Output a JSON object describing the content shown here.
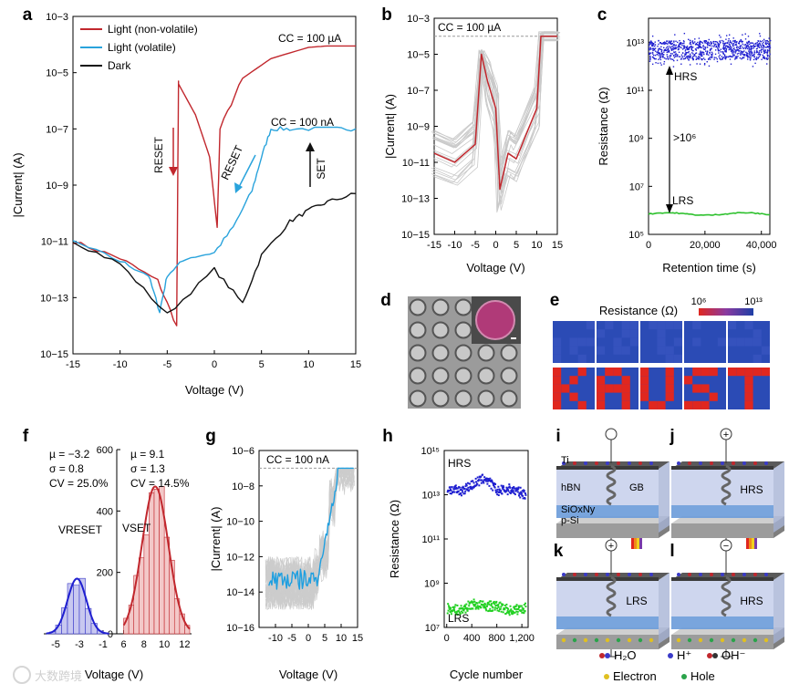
{
  "panels": {
    "a": {
      "letter": "a",
      "xlabel": "Voltage (V)",
      "ylabel": "|Current| (A)",
      "xticks": [
        "-15",
        "-10",
        "-5",
        "0",
        "5",
        "10",
        "15"
      ],
      "yticks": [
        "10−15",
        "10−13",
        "10−11",
        "10−9",
        "10−7",
        "10−5",
        "10−3"
      ],
      "legend": [
        "Light (non-volatile)",
        "Light (volatile)",
        "Dark"
      ],
      "cc_high": "CC = 100 µA",
      "cc_low": "CC = 100 nA",
      "reset1": "RESET",
      "reset2": "RESET",
      "set": "SET"
    },
    "b": {
      "letter": "b",
      "xlabel": "Voltage (V)",
      "ylabel": "|Current| (A)",
      "xticks": [
        "-15",
        "-10",
        "-5",
        "0",
        "5",
        "10",
        "15"
      ],
      "yticks": [
        "10−15",
        "10−13",
        "10−11",
        "10−9",
        "10−7",
        "10−5",
        "10−3"
      ],
      "cc": "CC = 100 µA"
    },
    "c": {
      "letter": "c",
      "xlabel": "Retention time (s)",
      "ylabel": "Resistance (Ω)",
      "xticks": [
        "0",
        "20,000",
        "40,000"
      ],
      "yticks": [
        "10⁵",
        "10⁷",
        "10⁹",
        "10¹¹",
        "10¹³"
      ],
      "hrs": "HRS",
      "lrs": "LRS",
      "ratio": ">10⁶"
    },
    "d": {
      "letter": "d"
    },
    "e": {
      "letter": "e",
      "title": "Resistance (Ω)",
      "scale_min": "10⁶",
      "scale_max": "10¹³"
    },
    "f": {
      "letter": "f",
      "xlabel": "Voltage (V)",
      "xticks": [
        "-5",
        "-3",
        "-1",
        "6",
        "8",
        "10",
        "12"
      ],
      "yticks": [
        "0",
        "200",
        "400",
        "600"
      ],
      "reset_stats": [
        "µ = −3.2",
        "σ = 0.8",
        "CV = 25.0%"
      ],
      "set_stats": [
        "µ = 9.1",
        "σ = 1.3",
        "CV = 14.5%"
      ],
      "vreset": "VRESET",
      "vset": "VSET"
    },
    "g": {
      "letter": "g",
      "xlabel": "Voltage (V)",
      "ylabel": "|Current| (A)",
      "xticks": [
        "-10",
        "-5",
        "0",
        "5",
        "10",
        "15"
      ],
      "yticks": [
        "10−16",
        "10−14",
        "10−12",
        "10−10",
        "10−8",
        "10−6"
      ],
      "cc": "CC = 100 nA"
    },
    "h": {
      "letter": "h",
      "xlabel": "Cycle number",
      "ylabel": "Resistance (Ω)",
      "xticks": [
        "0",
        "400",
        "800",
        "1,200"
      ],
      "yticks": [
        "10⁷",
        "10⁹",
        "10¹¹",
        "10¹³",
        "10¹⁵"
      ],
      "hrs": "HRS",
      "lrs": "LRS"
    },
    "i": {
      "letter": "i",
      "ti": "Ti",
      "hbn": "hBN",
      "gb": "GB",
      "sio": "SiOxNy",
      "psi": "p-Si",
      "state": "HRS"
    },
    "j": {
      "letter": "j",
      "state": "HRS"
    },
    "k": {
      "letter": "k",
      "state": "LRS"
    },
    "l": {
      "letter": "l",
      "state": "HRS"
    },
    "legend2": [
      "H₂O",
      "H⁺",
      "OH⁻",
      "Electron",
      "Hole"
    ],
    "watermark": "大数跨境"
  },
  "chart_data": [
    {
      "type": "line",
      "panel": "a",
      "xlim": [
        -15,
        15
      ],
      "ylim": [
        -15,
        -3
      ],
      "yscale": "log10",
      "series": [
        {
          "name": "Light (non-volatile)",
          "x": [
            -15,
            -10,
            -6,
            -4,
            -3.8,
            -3.8,
            -2,
            -0.5,
            0.3,
            0.6,
            3,
            6,
            10,
            12,
            15
          ],
          "y": [
            -11.0,
            -11.6,
            -12.4,
            -14.0,
            -5.3,
            -5.4,
            -6.5,
            -8.0,
            -10.5,
            -7,
            -5.2,
            -4.5,
            -4.1,
            -4.05,
            -4.05
          ]
        },
        {
          "name": "Light (volatile)",
          "x": [
            -15,
            -10,
            -7,
            -5.8,
            -5,
            -3,
            0,
            2,
            4,
            5,
            6,
            8,
            12,
            15
          ],
          "y": [
            -11.0,
            -11.7,
            -12.2,
            -13.5,
            -12.2,
            -11.6,
            -11.4,
            -10.5,
            -9.2,
            -8.0,
            -7.0,
            -7.0,
            -7.0,
            -7.0
          ]
        },
        {
          "name": "Dark",
          "x": [
            -15,
            -10,
            -5,
            0,
            3,
            5,
            8,
            10,
            12,
            15
          ],
          "y": [
            -11.0,
            -11.8,
            -13.6,
            -12.0,
            -13.2,
            -11.5,
            -10.3,
            -9.9,
            -9.6,
            -9.3
          ]
        }
      ]
    },
    {
      "type": "line",
      "panel": "b",
      "xlim": [
        -15,
        15
      ],
      "ylim": [
        -15,
        -3
      ],
      "yscale": "log10",
      "series": [
        {
          "name": "",
          "x": [
            -15,
            -10,
            -5,
            -3.5,
            -2,
            0,
            1,
            3,
            5,
            10,
            11,
            15
          ],
          "y": [
            -10.5,
            -11.0,
            -10.0,
            -5.0,
            -6.5,
            -8.0,
            -12.5,
            -10.5,
            -10.8,
            -8.0,
            -4.0,
            -4.0
          ]
        }
      ]
    },
    {
      "type": "scatter",
      "panel": "c",
      "xlim": [
        0,
        43000
      ],
      "ylim": [
        5,
        14
      ],
      "yscale": "log10",
      "series": [
        {
          "name": "HRS",
          "x": [
            0,
            10000,
            20000,
            30000,
            43000
          ],
          "y": [
            12.8,
            12.8,
            12.7,
            12.8,
            12.8
          ]
        },
        {
          "name": "LRS",
          "x": [
            0,
            10000,
            20000,
            30000,
            43000
          ],
          "y": [
            5.8,
            5.9,
            5.8,
            5.9,
            5.8
          ]
        }
      ]
    },
    {
      "type": "bar",
      "panel": "f",
      "xlim": [
        -6,
        13
      ],
      "ylim": [
        0,
        600
      ],
      "series": [
        {
          "name": "VRESET",
          "mu": -3.2,
          "sigma": 0.8
        },
        {
          "name": "VSET",
          "mu": 9.1,
          "sigma": 1.3
        }
      ]
    },
    {
      "type": "line",
      "panel": "g",
      "xlim": [
        -15,
        15
      ],
      "ylim": [
        -16,
        -6
      ],
      "yscale": "log10",
      "series": [
        {
          "name": "",
          "x": [
            -12,
            -8,
            -5,
            0,
            3,
            6,
            8,
            10,
            15
          ],
          "y": [
            -12.5,
            -13.5,
            -13.2,
            -13.6,
            -13.0,
            -12.0,
            -9.0,
            -7.0,
            -7.0
          ]
        }
      ]
    },
    {
      "type": "scatter",
      "panel": "h",
      "xlim": [
        0,
        1250
      ],
      "ylim": [
        7,
        15
      ],
      "yscale": "log10",
      "series": [
        {
          "name": "HRS",
          "x": [
            0,
            200,
            400,
            600,
            800,
            1000,
            1200
          ],
          "y": [
            13.3,
            13.2,
            13.5,
            13.8,
            13.2,
            13.3,
            13.1
          ]
        },
        {
          "name": "LRS",
          "x": [
            0,
            200,
            400,
            600,
            800,
            1000,
            1200
          ],
          "y": [
            7.9,
            7.8,
            8.1,
            8.0,
            8.0,
            7.8,
            7.9
          ]
        }
      ]
    }
  ]
}
